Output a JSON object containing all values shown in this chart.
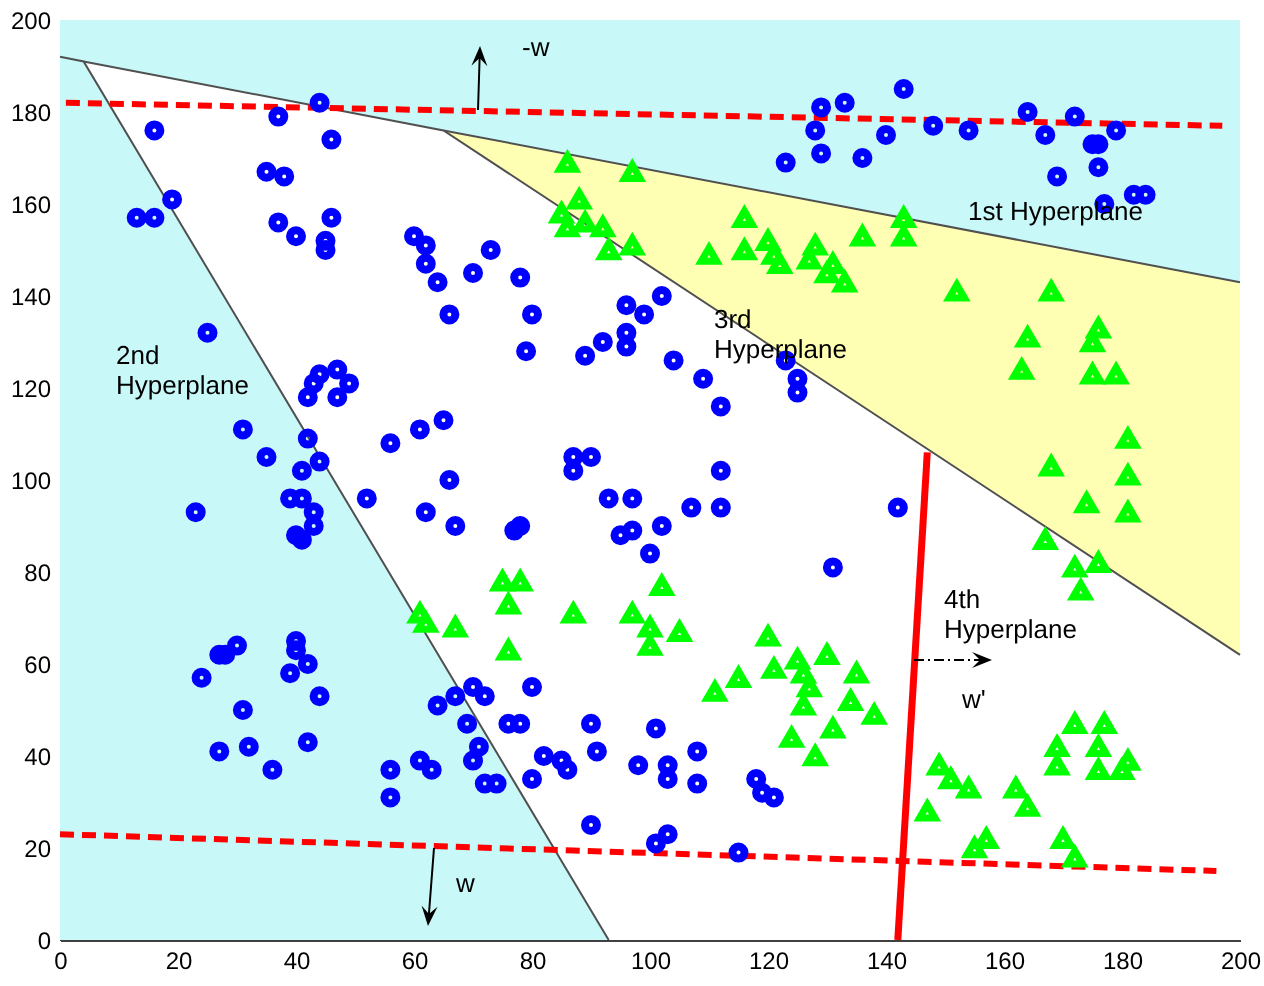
{
  "chart_data": {
    "type": "scatter",
    "xlim": [
      0,
      200
    ],
    "ylim": [
      0,
      200
    ],
    "xticks": [
      0,
      20,
      40,
      60,
      80,
      100,
      120,
      140,
      160,
      180,
      200
    ],
    "yticks": [
      0,
      20,
      40,
      60,
      80,
      100,
      120,
      140,
      160,
      180,
      200
    ],
    "bands": [
      {
        "axis": "y",
        "from": 143,
        "to": 200,
        "color": "#c8f8f8"
      }
    ],
    "annotations": [
      "1st Hyperplane",
      "2nd\nHyperplane",
      "3rd\nHyperplane",
      "4th\nHyperplane",
      "-w",
      "w",
      "w'"
    ],
    "series": [
      {
        "type": "area",
        "color": "#ffffb4",
        "x": [
          65,
          200
        ],
        "values": [
          176,
          143
        ]
      },
      {
        "type": "area",
        "color": "#ffffff",
        "x": [
          4,
          65,
          200
        ],
        "values": [
          191,
          176,
          62
        ]
      },
      {
        "type": "area",
        "color": "#c8f8f8",
        "x": [
          0,
          4,
          93
        ],
        "values": [
          192,
          191,
          0
        ]
      },
      {
        "type": "line",
        "color": "#ff0000",
        "line_style": "dashed",
        "x": [
          1,
          197
        ],
        "values": [
          182,
          177
        ]
      },
      {
        "type": "line",
        "color": "#ff0000",
        "line_style": "dashed",
        "x": [
          0,
          196
        ],
        "values": [
          23,
          15
        ]
      },
      {
        "type": "line",
        "color": "#ff0000",
        "line_style": "solid",
        "x": [
          142,
          147
        ],
        "values": [
          0,
          106
        ]
      },
      {
        "color": "#0000ff",
        "marker": "circle",
        "x": [
          16,
          13,
          16,
          19,
          25,
          37,
          44,
          46,
          35,
          38,
          37,
          40,
          46,
          45,
          45,
          60,
          62,
          62,
          64,
          66,
          70,
          73,
          78,
          80,
          79,
          89,
          92,
          96,
          96,
          96,
          99,
          44,
          47,
          49,
          42,
          47,
          43,
          31,
          35,
          42,
          41,
          44,
          56,
          61,
          65,
          66,
          87,
          90,
          87,
          52,
          39,
          41,
          93,
          97,
          129,
          133,
          143,
          128,
          129,
          123,
          136,
          140,
          148,
          154,
          164,
          167,
          172,
          179,
          175,
          176,
          176,
          169,
          182,
          184,
          177,
          102,
          104,
          109,
          112,
          123,
          125,
          125,
          112,
          23,
          43,
          43,
          40,
          41,
          62,
          67,
          78,
          77,
          95,
          97,
          100,
          30,
          28,
          27,
          24,
          40,
          40,
          42,
          39,
          44,
          31,
          27,
          32,
          42,
          36,
          56,
          56,
          61,
          63,
          64,
          67,
          70,
          72,
          69,
          71,
          70,
          72,
          74,
          76,
          78,
          80,
          80,
          82,
          85,
          86,
          90,
          91,
          90,
          98,
          107,
          112,
          142,
          102,
          131,
          101,
          103,
          103,
          108,
          108,
          118,
          119,
          121,
          103,
          101,
          115
        ],
        "values": [
          176,
          157,
          157,
          161,
          132,
          179,
          182,
          174,
          167,
          166,
          156,
          153,
          157,
          152,
          150,
          153,
          151,
          147,
          143,
          136,
          145,
          150,
          144,
          136,
          128,
          127,
          130,
          129,
          132,
          138,
          136,
          123,
          124,
          121,
          118,
          118,
          121,
          111,
          105,
          109,
          102,
          104,
          108,
          111,
          113,
          100,
          105,
          105,
          102,
          96,
          96,
          96,
          96,
          96,
          181,
          182,
          185,
          176,
          171,
          169,
          170,
          175,
          177,
          176,
          180,
          175,
          179,
          176,
          173,
          173,
          168,
          166,
          162,
          162,
          160,
          140,
          126,
          122,
          116,
          126,
          122,
          119,
          102,
          93,
          93,
          90,
          88,
          87,
          93,
          90,
          90,
          89,
          88,
          89,
          84,
          64,
          62,
          62,
          57,
          65,
          63,
          60,
          58,
          53,
          50,
          41,
          42,
          43,
          37,
          37,
          31,
          39,
          37,
          51,
          53,
          55,
          53,
          47,
          42,
          39,
          34,
          34,
          47,
          47,
          55,
          35,
          40,
          39,
          37,
          47,
          41,
          25,
          38,
          94,
          94,
          94,
          90,
          81,
          46,
          38,
          35,
          41,
          34,
          35,
          32,
          31,
          23,
          21,
          19
        ]
      },
      {
        "color": "#00ff00",
        "marker": "triangle",
        "x": [
          86,
          97,
          88,
          85,
          86,
          89,
          92,
          93,
          97,
          116,
          110,
          116,
          120,
          121,
          122,
          128,
          127,
          131,
          130,
          133,
          136,
          143,
          143,
          152,
          168,
          164,
          163,
          176,
          175,
          175,
          179,
          181,
          168,
          181,
          174,
          181,
          167,
          172,
          176,
          173,
          102,
          97,
          100,
          100,
          105,
          120,
          121,
          125,
          126,
          127,
          126,
          130,
          135,
          134,
          138,
          115,
          111,
          131,
          124,
          128,
          149,
          151,
          147,
          154,
          155,
          157,
          162,
          164,
          170,
          172,
          172,
          177,
          169,
          169,
          176,
          176,
          181,
          180,
          75,
          78,
          76,
          61,
          62,
          67,
          76,
          87
        ],
        "values": [
          169,
          167,
          161,
          158,
          155,
          156,
          155,
          150,
          151,
          157,
          149,
          150,
          152,
          149,
          147,
          151,
          148,
          147,
          145,
          143,
          153,
          157,
          153,
          141,
          141,
          131,
          124,
          133,
          130,
          123,
          123,
          109,
          103,
          101,
          95,
          93,
          87,
          81,
          82,
          76,
          77,
          71,
          68,
          64,
          67,
          66,
          59,
          61,
          58,
          55,
          51,
          62,
          58,
          52,
          49,
          57,
          54,
          46,
          44,
          40,
          38,
          35,
          28,
          33,
          20,
          22,
          33,
          29,
          22,
          18,
          47,
          47,
          42,
          38,
          42,
          37,
          39,
          37,
          78,
          78,
          73,
          71,
          69,
          68,
          63,
          71
        ]
      }
    ]
  }
}
